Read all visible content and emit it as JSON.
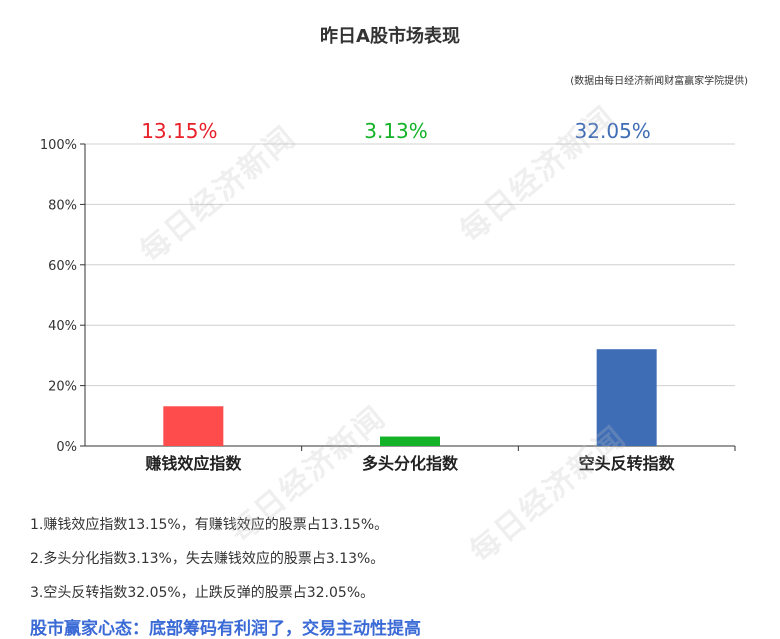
{
  "title": "昨日A股市场表现",
  "source_note": "(数据由每日经济新闻财富赢家学院提供)",
  "watermark_text": "每日经济新闻",
  "chart_data": {
    "type": "bar",
    "categories": [
      "赚钱效应指数",
      "多头分化指数",
      "空头反转指数"
    ],
    "values": [
      13.15,
      3.13,
      32.05
    ],
    "value_labels": [
      "13.15%",
      "3.13%",
      "32.05%"
    ],
    "colors": [
      "#fe4b4b",
      "#14b327",
      "#3e6db5"
    ],
    "label_colors": [
      "#e8202a",
      "#14b327",
      "#3e6db5"
    ],
    "ylim": [
      0,
      100
    ],
    "yticks": [
      0,
      20,
      40,
      60,
      80,
      100
    ],
    "ytick_labels": [
      "0%",
      "20%",
      "40%",
      "60%",
      "80%",
      "100%"
    ],
    "grid": true
  },
  "notes": [
    "1.赚钱效应指数13.15%，有赚钱效应的股票占13.15%。",
    "2.多头分化指数3.13%，失去赚钱效应的股票占3.13%。",
    "3.空头反转指数32.05%，止跌反弹的股票占32.05%。"
  ],
  "headline": "股市赢家心态：底部筹码有利润了，交易主动性提高"
}
